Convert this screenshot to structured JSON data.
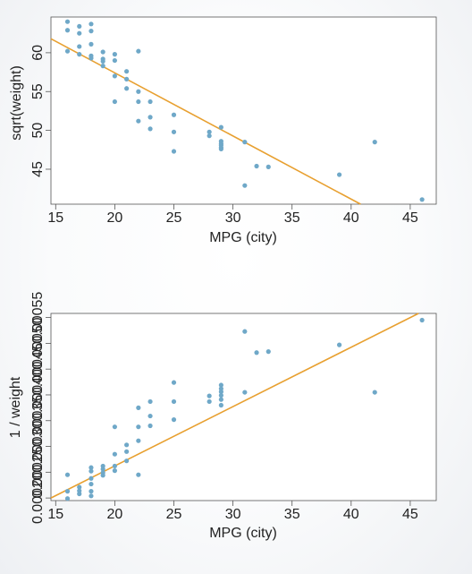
{
  "chart_data": [
    {
      "type": "scatter",
      "xlabel": "MPG (city)",
      "ylabel": "sqrt(weight)",
      "xlim": [
        14.6,
        47.2
      ],
      "ylim": [
        40.5,
        64.6
      ],
      "xticks": [
        15,
        20,
        25,
        30,
        35,
        40,
        45
      ],
      "xtick_labels": [
        "15",
        "20",
        "25",
        "30",
        "35",
        "40",
        "45"
      ],
      "yticks": [
        45,
        50,
        55,
        60
      ],
      "ytick_labels": [
        "45",
        "50",
        "55",
        "60"
      ],
      "grid": false,
      "point_color": "#6fa8c8",
      "line_color": "#e8a030",
      "trendline": {
        "x": [
          14.6,
          40.8
        ],
        "y": [
          61.8,
          40.5
        ]
      },
      "x": [
        16,
        16,
        16,
        17,
        17,
        17,
        17,
        18,
        18,
        18,
        18,
        18,
        19,
        19,
        19,
        19,
        20,
        20,
        20,
        20,
        21,
        21,
        21,
        22,
        22,
        22,
        22,
        23,
        23,
        23,
        25,
        25,
        25,
        28,
        28,
        29,
        29,
        29,
        29,
        29,
        29,
        31,
        31,
        32,
        33,
        39,
        42,
        46
      ],
      "y": [
        64.0,
        62.9,
        60.2,
        63.4,
        62.5,
        60.8,
        59.8,
        63.7,
        62.8,
        61.1,
        59.6,
        59.3,
        60.1,
        59.2,
        58.9,
        58.3,
        59.8,
        59.0,
        57.0,
        53.7,
        57.6,
        56.6,
        55.4,
        60.2,
        55.0,
        53.7,
        51.2,
        53.7,
        51.7,
        50.2,
        52.0,
        49.8,
        47.3,
        49.8,
        49.3,
        50.4,
        48.6,
        48.3,
        48.1,
        47.8,
        47.6,
        48.5,
        42.9,
        45.4,
        45.3,
        44.3,
        48.5,
        41.1
      ]
    },
    {
      "type": "scatter",
      "xlabel": "MPG (city)",
      "ylabel": "1 / weight",
      "xlim": [
        14.6,
        47.2
      ],
      "ylim": [
        0.000195,
        0.000558
      ],
      "xticks": [
        15,
        20,
        25,
        30,
        35,
        40,
        45
      ],
      "xtick_labels": [
        "15",
        "20",
        "25",
        "30",
        "35",
        "40",
        "45"
      ],
      "yticks": [
        0.00025,
        0.0004,
        0.00055
      ],
      "ytick_labels": [
        "0.00025",
        "0.00040",
        "0.00055"
      ],
      "yticks_minor": [
        0.0002,
        0.0003,
        0.00035,
        0.00045,
        0.0005
      ],
      "ytick_labels_minor": [
        "0.00020",
        "0.00030",
        "0.00035",
        "0.00045",
        "0.00050"
      ],
      "grid": false,
      "point_color": "#6fa8c8",
      "line_color": "#e8a030",
      "trendline": {
        "x": [
          14.6,
          45.7
        ],
        "y": [
          0.0002,
          0.000558
        ]
      },
      "x": [
        16,
        16,
        16,
        17,
        17,
        17,
        18,
        18,
        18,
        18,
        18,
        18,
        19,
        19,
        19,
        19,
        20,
        20,
        20,
        20,
        21,
        21,
        21,
        22,
        22,
        22,
        22,
        23,
        23,
        23,
        25,
        25,
        25,
        28,
        28,
        29,
        29,
        29,
        29,
        29,
        29,
        31,
        31,
        32,
        33,
        39,
        42,
        46
      ],
      "y": [
        0.000245,
        0.000213,
        0.000199,
        0.000221,
        0.000214,
        0.000208,
        0.000259,
        0.000252,
        0.000238,
        0.000227,
        0.000213,
        0.000204,
        0.000262,
        0.000256,
        0.000249,
        0.000244,
        0.000338,
        0.000285,
        0.000262,
        0.000253,
        0.000303,
        0.00029,
        0.000272,
        0.000375,
        0.000338,
        0.000311,
        0.000245,
        0.000387,
        0.000359,
        0.00034,
        0.000424,
        0.000387,
        0.000352,
        0.000398,
        0.000387,
        0.000419,
        0.000412,
        0.000406,
        0.000399,
        0.000391,
        0.00038,
        0.000523,
        0.000405,
        0.000482,
        0.000484,
        0.000497,
        0.000405,
        0.000545
      ]
    }
  ]
}
